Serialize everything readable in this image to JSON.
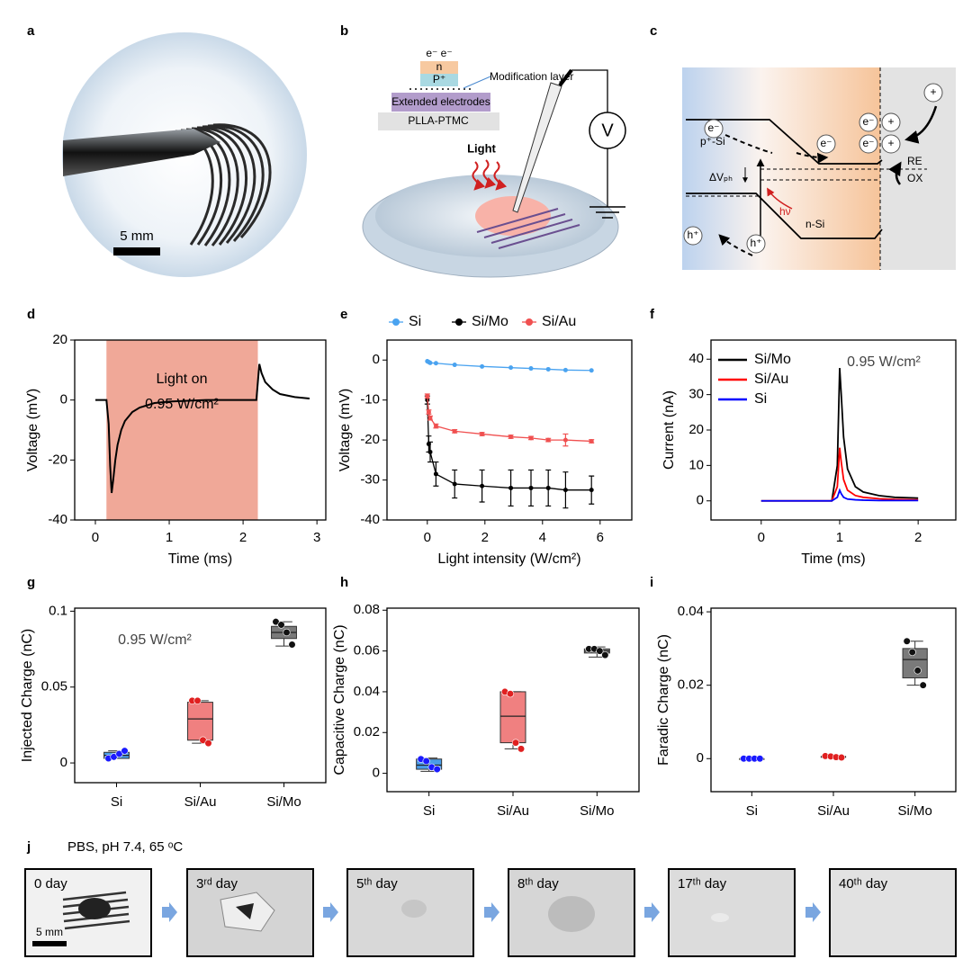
{
  "letters": [
    "a",
    "b",
    "c",
    "d",
    "e",
    "f",
    "g",
    "h",
    "i",
    "j"
  ],
  "panel_a": {
    "scale": "5 mm"
  },
  "panel_b": {
    "electrons": "e⁻  e⁻",
    "n_layer": "n",
    "p_layer": "P⁺",
    "callout": "Modification layer",
    "electrodes": "Extended electrodes",
    "substrate": "PLLA-PTMC",
    "light": "Light",
    "meter": "V"
  },
  "panel_c": {
    "p_side": "p⁺-Si",
    "n_side": "n-Si",
    "photovoltage": "ΔVₚₕ",
    "photon": "hν",
    "electron": "e⁻",
    "hole": "h⁺",
    "cation": "+",
    "reduced": "RE",
    "oxidized": "OX"
  },
  "chart_data": [
    {
      "type": "line",
      "xlabel": "Time (ms)",
      "ylabel": "Voltage (mV)",
      "xlim": [
        -0.28,
        3.12
      ],
      "ylim": [
        -40,
        20
      ],
      "xticks": [
        0,
        1,
        2,
        3
      ],
      "yticks": [
        -40,
        -20,
        0,
        20
      ],
      "span": [
        0.15,
        2.2
      ],
      "span_color": "#f0a898",
      "annotations": [
        "Light on",
        "0.95 W/cm²"
      ],
      "color": "#000000",
      "line_width": 2,
      "x": [
        0,
        0.15,
        0.18,
        0.2,
        0.22,
        0.24,
        0.27,
        0.3,
        0.35,
        0.4,
        0.5,
        0.6,
        0.8,
        1.0,
        1.5,
        2.0,
        2.18,
        2.2,
        2.22,
        2.25,
        2.3,
        2.4,
        2.5,
        2.7,
        2.9
      ],
      "values": [
        0,
        0,
        -8,
        -22,
        -31,
        -27,
        -20,
        -15,
        -10,
        -7,
        -4,
        -2.5,
        -1,
        -0.5,
        0,
        0,
        0,
        6,
        12,
        9,
        6,
        3.5,
        2,
        1,
        0.5
      ]
    },
    {
      "type": "line",
      "xlabel": "Light intensity (W/cm²)",
      "ylabel": "Voltage (mV)",
      "xlim": [
        -1.4,
        7.1
      ],
      "ylim": [
        -40,
        5
      ],
      "xticks": [
        0,
        2,
        4,
        6
      ],
      "yticks": [
        -40,
        -30,
        -20,
        -10,
        0
      ],
      "legend": "top",
      "markers": true,
      "line_width": 1.3,
      "x": [
        0,
        0.05,
        0.1,
        0.3,
        0.95,
        1.9,
        2.9,
        3.6,
        4.2,
        4.8,
        5.7
      ],
      "series": [
        {
          "name": "Si",
          "color": "#4aa3f0",
          "values": [
            -0.3,
            -0.5,
            -0.7,
            -0.8,
            -1.2,
            -1.6,
            -1.9,
            -2.1,
            -2.3,
            -2.5,
            -2.6
          ]
        },
        {
          "name": "Si/Mo",
          "color": "#000000",
          "values": [
            -10,
            -21,
            -23,
            -28.5,
            -31,
            -31.5,
            -32,
            -32,
            -32,
            -32.5,
            -32.5
          ],
          "errors": [
            1,
            2,
            2.5,
            3,
            3.5,
            4,
            4.5,
            4.5,
            4.5,
            4.5,
            3.5
          ]
        },
        {
          "name": "Si/Au",
          "color": "#f05050",
          "values": [
            -9,
            -13,
            -14.5,
            -16.5,
            -17.8,
            -18.5,
            -19.2,
            -19.5,
            -20,
            -20,
            -20.3
          ],
          "errors": [
            0.5,
            0.5,
            0.5,
            0.5,
            0.4,
            0.4,
            0.4,
            0.4,
            0.4,
            1.5,
            0.4
          ]
        }
      ]
    },
    {
      "type": "line",
      "xlabel": "Time (ms)",
      "ylabel": "Current (nA)",
      "xlim": [
        -0.64,
        2.48
      ],
      "ylim": [
        -5.4,
        45.4
      ],
      "xticks": [
        0,
        1,
        2
      ],
      "yticks": [
        0,
        10,
        20,
        30,
        40
      ],
      "legend": "upper left",
      "annotations": [
        "0.95 W/cm²"
      ],
      "line_width": 1.8,
      "x": [
        0,
        0.9,
        0.97,
        1.0,
        1.02,
        1.05,
        1.1,
        1.2,
        1.3,
        1.5,
        1.7,
        2.0
      ],
      "series": [
        {
          "name": "Si/Mo",
          "color": "#000000",
          "values": [
            0,
            0,
            10,
            37.5,
            30,
            18,
            9,
            4,
            2.5,
            1.5,
            1,
            0.8
          ]
        },
        {
          "name": "Si/Au",
          "color": "#ff0000",
          "values": [
            0,
            0,
            4,
            15,
            11,
            6,
            3,
            1.5,
            1,
            0.6,
            0.4,
            0.3
          ]
        },
        {
          "name": "Si",
          "color": "#0000ff",
          "values": [
            0,
            0,
            1,
            3,
            2,
            1,
            0.5,
            0.3,
            0.2,
            0.1,
            0.1,
            0.1
          ]
        }
      ]
    },
    {
      "type": "box",
      "ylabel": "Injected Charge (nC)",
      "ylim": [
        -0.013,
        0.102
      ],
      "yticks": [
        0,
        0.05,
        0.1
      ],
      "annotations": [
        "0.95 W/cm²"
      ],
      "categories": [
        "Si",
        "Si/Au",
        "Si/Mo"
      ],
      "boxes": [
        {
          "color": "#4a9de8",
          "point_color": "#1a1aff",
          "min": 0.003,
          "q1": 0.003,
          "median": 0.005,
          "q3": 0.007,
          "max": 0.008,
          "points": [
            0.003,
            0.004,
            0.006,
            0.008
          ]
        },
        {
          "color": "#f08080",
          "point_color": "#e02020",
          "min": 0.013,
          "q1": 0.015,
          "median": 0.029,
          "q3": 0.04,
          "max": 0.041,
          "points": [
            0.041,
            0.041,
            0.015,
            0.013
          ]
        },
        {
          "color": "#7a7a7a",
          "point_color": "#111111",
          "min": 0.077,
          "q1": 0.082,
          "median": 0.086,
          "q3": 0.09,
          "max": 0.093,
          "points": [
            0.093,
            0.091,
            0.086,
            0.078
          ]
        }
      ]
    },
    {
      "type": "box",
      "ylabel": "Capacitive Charge (nC)",
      "ylim": [
        -0.009,
        0.081
      ],
      "yticks": [
        0,
        0.02,
        0.04,
        0.06,
        0.08
      ],
      "categories": [
        "Si",
        "Si/Au",
        "Si/Mo"
      ],
      "boxes": [
        {
          "color": "#4a9de8",
          "point_color": "#1a1aff",
          "min": 0.001,
          "q1": 0.002,
          "median": 0.004,
          "q3": 0.007,
          "max": 0.0075,
          "points": [
            0.007,
            0.006,
            0.003,
            0.002
          ]
        },
        {
          "color": "#f08080",
          "point_color": "#e02020",
          "min": 0.012,
          "q1": 0.015,
          "median": 0.028,
          "q3": 0.04,
          "max": 0.04,
          "points": [
            0.04,
            0.039,
            0.015,
            0.012
          ]
        },
        {
          "color": "#7a7a7a",
          "point_color": "#111111",
          "min": 0.057,
          "q1": 0.059,
          "median": 0.06,
          "q3": 0.061,
          "max": 0.062,
          "points": [
            0.061,
            0.061,
            0.06,
            0.058
          ]
        }
      ]
    },
    {
      "type": "box",
      "ylabel": "Faradic Charge (nC)",
      "ylim": [
        -0.009,
        0.041
      ],
      "yticks": [
        0,
        0.02,
        0.04
      ],
      "categories": [
        "Si",
        "Si/Au",
        "Si/Mo"
      ],
      "boxes": [
        {
          "color": "#4a9de8",
          "point_color": "#1a1aff",
          "min": 0,
          "q1": 0,
          "median": 0,
          "q3": 0,
          "max": 0,
          "points": [
            0,
            0,
            0,
            0
          ]
        },
        {
          "color": "#f08080",
          "point_color": "#e02020",
          "min": 0.0003,
          "q1": 0.0004,
          "median": 0.0005,
          "q3": 0.0006,
          "max": 0.0007,
          "points": [
            0.0007,
            0.0006,
            0.0004,
            0.0003
          ]
        },
        {
          "color": "#7a7a7a",
          "point_color": "#111111",
          "min": 0.02,
          "q1": 0.022,
          "median": 0.027,
          "q3": 0.03,
          "max": 0.032,
          "points": [
            0.032,
            0.029,
            0.024,
            0.02
          ]
        }
      ]
    }
  ],
  "panel_j": {
    "condition": "PBS, pH 7.4, 65 ᵒC",
    "frames": [
      "0 day",
      "3ʳᵈ day",
      "5ᵗʰ day",
      "8ᵗʰ day",
      "17ᵗʰ day",
      "40ᵗʰ day"
    ],
    "scale": "5 mm"
  }
}
